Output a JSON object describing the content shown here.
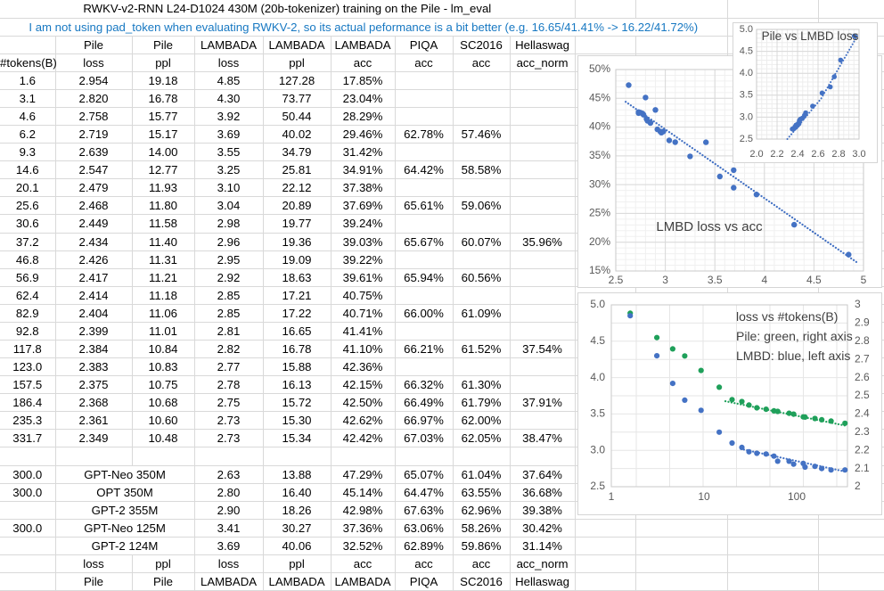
{
  "title": "RWKV-v2-RNN L24-D1024 430M (20b-tokenizer) training on the Pile - lm_eval",
  "note": "I am not using pad_token when evaluating RWKV-2, so its actual peformance is a bit better (e.g. 16.65/41.41% -> 16.22/41.72%)",
  "colors": {
    "note_blue": "#1778c2",
    "grid_line": "#d9d9d9",
    "chart_border": "#d5d5d5",
    "point_blue": "#4472c4",
    "point_green": "#1fa05a",
    "axis_text": "#595959",
    "chart_title_text": "#404040"
  },
  "table": {
    "group_headers": [
      "",
      "Pile",
      "Pile",
      "LAMBADA",
      "LAMBADA",
      "LAMBADA",
      "PIQA",
      "SC2016",
      "Hellaswag"
    ],
    "sub_headers": [
      "#tokens(B)",
      "loss",
      "ppl",
      "loss",
      "ppl",
      "acc",
      "acc",
      "acc",
      "acc_norm"
    ],
    "rows": [
      [
        "1.6",
        "2.954",
        "19.18",
        "4.85",
        "127.28",
        "17.85%",
        "",
        "",
        ""
      ],
      [
        "3.1",
        "2.820",
        "16.78",
        "4.30",
        "73.77",
        "23.04%",
        "",
        "",
        ""
      ],
      [
        "4.6",
        "2.758",
        "15.77",
        "3.92",
        "50.44",
        "28.29%",
        "",
        "",
        ""
      ],
      [
        "6.2",
        "2.719",
        "15.17",
        "3.69",
        "40.02",
        "29.46%",
        "62.78%",
        "57.46%",
        ""
      ],
      [
        "9.3",
        "2.639",
        "14.00",
        "3.55",
        "34.79",
        "31.42%",
        "",
        "",
        ""
      ],
      [
        "14.6",
        "2.547",
        "12.77",
        "3.25",
        "25.81",
        "34.91%",
        "64.42%",
        "58.58%",
        ""
      ],
      [
        "20.1",
        "2.479",
        "11.93",
        "3.10",
        "22.12",
        "37.38%",
        "",
        "",
        ""
      ],
      [
        "25.6",
        "2.468",
        "11.80",
        "3.04",
        "20.89",
        "37.69%",
        "65.61%",
        "59.06%",
        ""
      ],
      [
        "30.6",
        "2.449",
        "11.58",
        "2.98",
        "19.77",
        "39.24%",
        "",
        "",
        ""
      ],
      [
        "37.2",
        "2.434",
        "11.40",
        "2.96",
        "19.36",
        "39.03%",
        "65.67%",
        "60.07%",
        "35.96%"
      ],
      [
        "46.8",
        "2.426",
        "11.31",
        "2.95",
        "19.09",
        "39.22%",
        "",
        "",
        ""
      ],
      [
        "56.9",
        "2.417",
        "11.21",
        "2.92",
        "18.63",
        "39.61%",
        "65.94%",
        "60.56%",
        ""
      ],
      [
        "62.4",
        "2.414",
        "11.18",
        "2.85",
        "17.21",
        "40.75%",
        "",
        "",
        ""
      ],
      [
        "82.9",
        "2.404",
        "11.06",
        "2.85",
        "17.22",
        "40.71%",
        "66.00%",
        "61.09%",
        ""
      ],
      [
        "92.8",
        "2.399",
        "11.01",
        "2.81",
        "16.65",
        "41.41%",
        "",
        "",
        ""
      ],
      [
        "117.8",
        "2.384",
        "10.84",
        "2.82",
        "16.78",
        "41.10%",
        "66.21%",
        "61.52%",
        "37.54%"
      ],
      [
        "123.0",
        "2.383",
        "10.83",
        "2.77",
        "15.88",
        "42.36%",
        "",
        "",
        ""
      ],
      [
        "157.5",
        "2.375",
        "10.75",
        "2.78",
        "16.13",
        "42.15%",
        "66.32%",
        "61.30%",
        ""
      ],
      [
        "186.4",
        "2.368",
        "10.68",
        "2.75",
        "15.72",
        "42.50%",
        "66.49%",
        "61.79%",
        "37.91%"
      ],
      [
        "235.3",
        "2.361",
        "10.60",
        "2.73",
        "15.30",
        "42.62%",
        "66.97%",
        "62.00%",
        ""
      ],
      [
        "331.7",
        "2.349",
        "10.48",
        "2.73",
        "15.34",
        "42.42%",
        "67.03%",
        "62.05%",
        "38.47%"
      ]
    ],
    "model_rows": [
      [
        "300.0",
        "GPT-Neo 350M",
        "2.63",
        "13.88",
        "47.29%",
        "65.07%",
        "61.04%",
        "37.64%"
      ],
      [
        "300.0",
        "OPT 350M",
        "2.80",
        "16.40",
        "45.14%",
        "64.47%",
        "63.55%",
        "36.68%"
      ],
      [
        "",
        "GPT-2 355M",
        "2.90",
        "18.26",
        "42.98%",
        "67.63%",
        "62.96%",
        "39.38%"
      ],
      [
        "300.0",
        "GPT-Neo 125M",
        "3.41",
        "30.27",
        "37.36%",
        "63.06%",
        "58.26%",
        "30.42%"
      ],
      [
        "",
        "GPT-2 124M",
        "3.69",
        "40.06",
        "32.52%",
        "62.89%",
        "59.86%",
        "31.14%"
      ]
    ],
    "footer_rows": [
      [
        "",
        "loss",
        "ppl",
        "loss",
        "ppl",
        "acc",
        "acc",
        "acc",
        "acc_norm"
      ],
      [
        "",
        "Pile",
        "Pile",
        "LAMBADA",
        "LAMBADA",
        "LAMBADA",
        "PIQA",
        "SC2016",
        "Hellaswag"
      ]
    ]
  },
  "chart_data": [
    {
      "id": "pile_vs_lmbd_loss",
      "type": "scatter",
      "title": "Pile vs LMBD loss",
      "xlabel": "Pile loss",
      "ylabel": "LAMBADA loss",
      "xlim": [
        2.0,
        3.0
      ],
      "ylim": [
        2.5,
        5.0
      ],
      "x_ticks": [
        "2.0",
        "2.2",
        "2.4",
        "2.6",
        "2.8",
        "3.0"
      ],
      "y_ticks": [
        "2.5",
        "3.0",
        "3.5",
        "4.0",
        "4.5",
        "5.0"
      ],
      "grid": "minor+major",
      "point_color": "#4472c4",
      "points": [
        [
          2.954,
          4.85
        ],
        [
          2.82,
          4.3
        ],
        [
          2.758,
          3.92
        ],
        [
          2.719,
          3.69
        ],
        [
          2.639,
          3.55
        ],
        [
          2.547,
          3.25
        ],
        [
          2.479,
          3.1
        ],
        [
          2.468,
          3.04
        ],
        [
          2.449,
          2.98
        ],
        [
          2.434,
          2.96
        ],
        [
          2.426,
          2.95
        ],
        [
          2.417,
          2.92
        ],
        [
          2.414,
          2.85
        ],
        [
          2.404,
          2.85
        ],
        [
          2.399,
          2.81
        ],
        [
          2.384,
          2.82
        ],
        [
          2.383,
          2.77
        ],
        [
          2.375,
          2.78
        ],
        [
          2.368,
          2.75
        ],
        [
          2.361,
          2.73
        ],
        [
          2.349,
          2.73
        ]
      ],
      "trendline": {
        "style": "dotted",
        "curve": [
          [
            2.3,
            2.5
          ],
          [
            2.63,
            3.42
          ],
          [
            2.99,
            4.88
          ]
        ]
      }
    },
    {
      "id": "lmbd_loss_vs_acc",
      "type": "scatter",
      "title": "LMBD loss vs acc",
      "xlabel": "LAMBADA loss",
      "ylabel": "LAMBADA acc (%)",
      "xlim": [
        2.5,
        5.0
      ],
      "ylim": [
        15,
        50
      ],
      "x_ticks": [
        "2.5",
        "3",
        "3.5",
        "4",
        "4.5",
        "5"
      ],
      "y_ticks": [
        "15%",
        "20%",
        "25%",
        "30%",
        "35%",
        "40%",
        "45%",
        "50%"
      ],
      "grid": "minor+major",
      "point_color": "#4472c4",
      "points": [
        [
          4.85,
          17.85
        ],
        [
          4.3,
          23.04
        ],
        [
          3.92,
          28.29
        ],
        [
          3.69,
          29.46
        ],
        [
          3.55,
          31.42
        ],
        [
          3.25,
          34.91
        ],
        [
          3.1,
          37.38
        ],
        [
          3.04,
          37.69
        ],
        [
          2.98,
          39.24
        ],
        [
          2.96,
          39.03
        ],
        [
          2.95,
          39.22
        ],
        [
          2.92,
          39.61
        ],
        [
          2.85,
          40.75
        ],
        [
          2.85,
          40.71
        ],
        [
          2.81,
          41.41
        ],
        [
          2.82,
          41.1
        ],
        [
          2.77,
          42.36
        ],
        [
          2.78,
          42.15
        ],
        [
          2.75,
          42.5
        ],
        [
          2.73,
          42.62
        ],
        [
          2.73,
          42.42
        ],
        [
          2.63,
          47.29
        ],
        [
          2.8,
          45.14
        ],
        [
          2.9,
          42.98
        ],
        [
          3.41,
          37.36
        ],
        [
          3.69,
          32.52
        ]
      ],
      "trendline": {
        "style": "dotted",
        "line": [
          [
            2.6,
            44.4
          ],
          [
            4.95,
            16.3
          ]
        ]
      }
    },
    {
      "id": "loss_vs_tokens",
      "type": "scatter",
      "title": "loss vs #tokens(B)",
      "legend_lines": [
        "Pile: green, right axis",
        "LMBD: blue, left axis"
      ],
      "x_scale": "log",
      "x_ticks": [
        "1",
        "10",
        "100"
      ],
      "left_ylim": [
        2.5,
        5.0
      ],
      "left_y_ticks": [
        "5.0",
        "4.5",
        "4.0",
        "3.5",
        "3.0",
        "2.5"
      ],
      "right_ylim": [
        2,
        3
      ],
      "right_y_ticks": [
        "3",
        "2.9",
        "2.8",
        "2.7",
        "2.6",
        "2.5",
        "2.4",
        "2.3",
        "2.2",
        "2.1",
        "2"
      ],
      "x": [
        1.6,
        3.1,
        4.6,
        6.2,
        9.3,
        14.6,
        20.1,
        25.6,
        30.6,
        37.2,
        46.8,
        56.9,
        62.4,
        82.9,
        92.8,
        117.8,
        123.0,
        157.5,
        186.4,
        235.3,
        331.7
      ],
      "series": [
        {
          "name": "Pile",
          "axis": "right",
          "color": "#1fa05a",
          "values": [
            2.954,
            2.82,
            2.758,
            2.719,
            2.639,
            2.547,
            2.479,
            2.468,
            2.449,
            2.434,
            2.426,
            2.417,
            2.414,
            2.404,
            2.399,
            2.384,
            2.383,
            2.375,
            2.368,
            2.361,
            2.349
          ]
        },
        {
          "name": "LMBD",
          "axis": "left",
          "color": "#4472c4",
          "values": [
            4.85,
            4.3,
            3.92,
            3.69,
            3.55,
            3.25,
            3.1,
            3.04,
            2.98,
            2.96,
            2.95,
            2.92,
            2.85,
            2.85,
            2.81,
            2.82,
            2.77,
            2.78,
            2.75,
            2.73,
            2.73
          ]
        }
      ],
      "trendlines": [
        {
          "series": "Pile",
          "style": "dotted",
          "line": [
            [
              17,
              2.47
            ],
            [
              343,
              2.335
            ]
          ]
        },
        {
          "series": "LMBD",
          "style": "dotted",
          "line": [
            [
              25,
              3.02
            ],
            [
              343,
              2.705
            ]
          ]
        }
      ]
    }
  ]
}
